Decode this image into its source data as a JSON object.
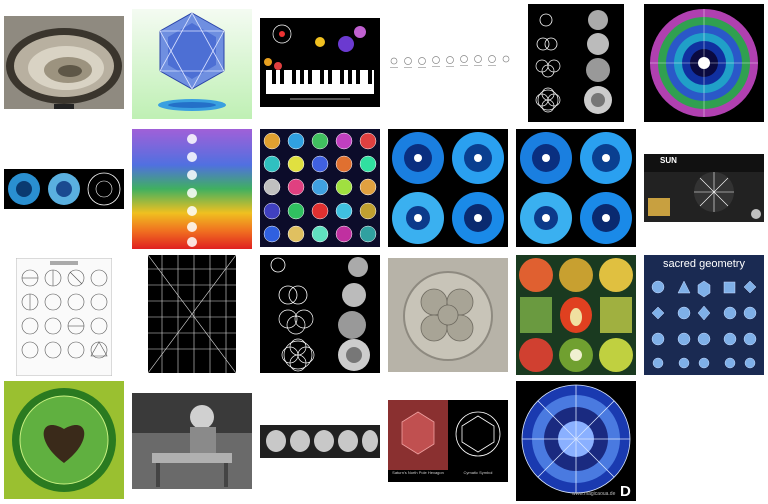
{
  "grid": {
    "thumbnails": [
      {
        "id": "r1c1",
        "icon": "shell-fossil-image"
      },
      {
        "id": "r1c2",
        "icon": "cymatic-geometry-image"
      },
      {
        "id": "r1c3",
        "icon": "piano-cymatics-image"
      },
      {
        "id": "r1c4",
        "icon": "cymatic-sequence-image"
      },
      {
        "id": "r1c5",
        "icon": "seed-of-life-image"
      },
      {
        "id": "r1c6",
        "icon": "rainbow-mandala-image"
      },
      {
        "id": "r2c1",
        "icon": "blue-mandala-strip-image"
      },
      {
        "id": "r2c2",
        "icon": "chakra-image"
      },
      {
        "id": "r2c3",
        "icon": "cymatic-pattern-grid-image"
      },
      {
        "id": "r2c4",
        "icon": "blue-cymatics-image"
      },
      {
        "id": "r2c5",
        "icon": "blue-cymatics-image"
      },
      {
        "id": "r2c6",
        "icon": "sun-cymatics-image",
        "texts": {
          "title": "SUN"
        }
      },
      {
        "id": "r3c1",
        "icon": "geometry-chart-image"
      },
      {
        "id": "r3c2",
        "icon": "line-pattern-grid-image"
      },
      {
        "id": "r3c3",
        "icon": "seed-of-life-image"
      },
      {
        "id": "r3c4",
        "icon": "cell-division-image"
      },
      {
        "id": "r3c5",
        "icon": "fruit-cross-section-image"
      },
      {
        "id": "r3c6",
        "icon": "sacred-geometry-chart-image",
        "texts": {
          "title": "sacred geometry"
        }
      },
      {
        "id": "r4c1",
        "icon": "green-cymatics-image"
      },
      {
        "id": "r4c2",
        "icon": "workshop-photo-image"
      },
      {
        "id": "r4c3",
        "icon": "skulls-image"
      },
      {
        "id": "r4c4",
        "icon": "hexagon-comparison-image",
        "texts": {
          "left_caption": "Saturn's North Pole Hexagon",
          "right_caption": "Cymatic Symbol"
        }
      },
      {
        "id": "r4c5",
        "icon": "blue-cymatic-sphere-image",
        "texts": {
          "watermark": "www.magicaoua.de",
          "badge": "D"
        }
      }
    ]
  }
}
